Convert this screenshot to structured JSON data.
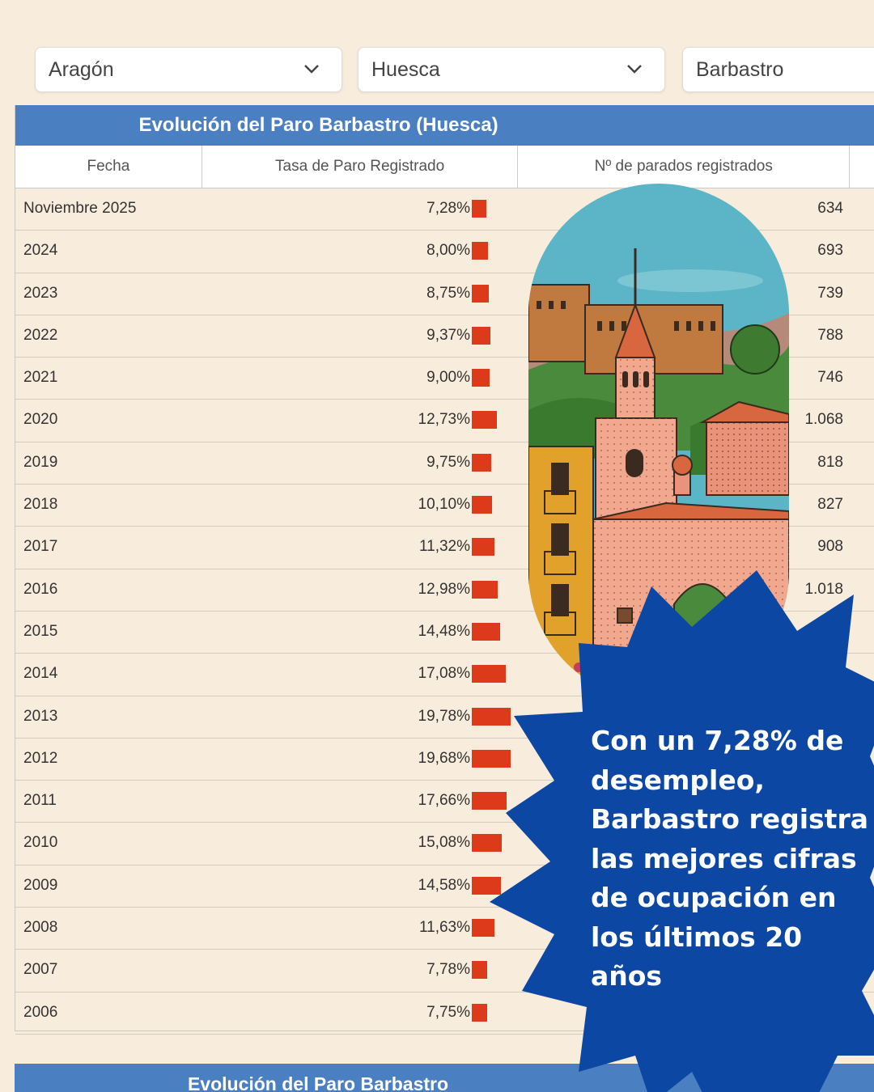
{
  "filters": {
    "region": "Aragón",
    "province": "Huesca",
    "municipality": "Barbastro"
  },
  "table": {
    "title": "Evolución del Paro Barbastro (Huesca)",
    "columns": {
      "fecha": "Fecha",
      "tasa": "Tasa de Paro Registrado",
      "parados": "Nº de parados registrados"
    },
    "rows": [
      {
        "fecha": "Noviembre 2025",
        "tasa": "7,28%",
        "tasa_value": 7.28,
        "parados": "634"
      },
      {
        "fecha": "2024",
        "tasa": "8,00%",
        "tasa_value": 8.0,
        "parados": "693"
      },
      {
        "fecha": "2023",
        "tasa": "8,75%",
        "tasa_value": 8.75,
        "parados": "739"
      },
      {
        "fecha": "2022",
        "tasa": "9,37%",
        "tasa_value": 9.37,
        "parados": "788"
      },
      {
        "fecha": "2021",
        "tasa": "9,00%",
        "tasa_value": 9.0,
        "parados": "746"
      },
      {
        "fecha": "2020",
        "tasa": "12,73%",
        "tasa_value": 12.73,
        "parados": "1.068"
      },
      {
        "fecha": "2019",
        "tasa": "9,75%",
        "tasa_value": 9.75,
        "parados": "818"
      },
      {
        "fecha": "2018",
        "tasa": "10,10%",
        "tasa_value": 10.1,
        "parados": "827"
      },
      {
        "fecha": "2017",
        "tasa": "11,32%",
        "tasa_value": 11.32,
        "parados": "908"
      },
      {
        "fecha": "2016",
        "tasa": "12,98%",
        "tasa_value": 12.98,
        "parados": "1.018"
      },
      {
        "fecha": "2015",
        "tasa": "14,48%",
        "tasa_value": 14.48,
        "parados": ""
      },
      {
        "fecha": "2014",
        "tasa": "17,08%",
        "tasa_value": 17.08,
        "parados": ""
      },
      {
        "fecha": "2013",
        "tasa": "19,78%",
        "tasa_value": 19.78,
        "parados": ""
      },
      {
        "fecha": "2012",
        "tasa": "19,68%",
        "tasa_value": 19.68,
        "parados": ""
      },
      {
        "fecha": "2011",
        "tasa": "17,66%",
        "tasa_value": 17.66,
        "parados": ""
      },
      {
        "fecha": "2010",
        "tasa": "15,08%",
        "tasa_value": 15.08,
        "parados": ""
      },
      {
        "fecha": "2009",
        "tasa": "14,58%",
        "tasa_value": 14.58,
        "parados": ""
      },
      {
        "fecha": "2008",
        "tasa": "11,63%",
        "tasa_value": 11.63,
        "parados": ""
      },
      {
        "fecha": "2007",
        "tasa": "7,78%",
        "tasa_value": 7.78,
        "parados": ""
      },
      {
        "fecha": "2006",
        "tasa": "7,75%",
        "tasa_value": 7.75,
        "parados": ""
      }
    ]
  },
  "second_table": {
    "title": "Evolución del Paro Barbastro"
  },
  "callout": {
    "text": "Con un 7,28% de desempleo, Barbastro registra las mejores cifras de ocupación en los últimos 20 años"
  },
  "colors": {
    "background": "#f8ecdc",
    "header_blue": "#4a7fc1",
    "bar_red": "#dd3a1c",
    "burst_blue": "#0b47a3"
  }
}
